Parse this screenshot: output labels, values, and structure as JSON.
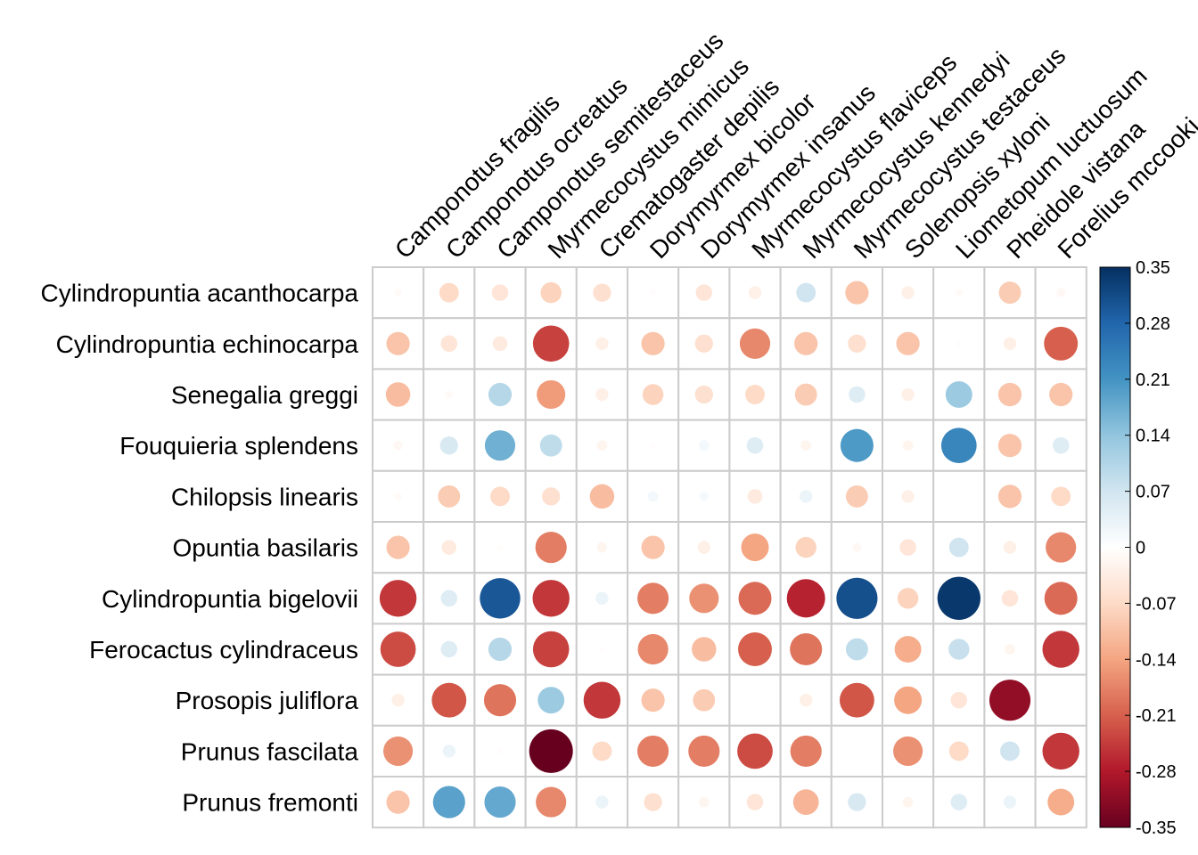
{
  "chart_data": {
    "type": "heatmap",
    "subtype": "corrplot-circle",
    "rows": [
      "Cylindropuntia acanthocarpa",
      "Cylindropuntia echinocarpa",
      "Senegalia greggi",
      "Fouquieria splendens",
      "Chilopsis linearis",
      "Opuntia basilaris",
      "Cylindropuntia bigelovii",
      "Ferocactus cylindraceus",
      "Prosopis juliflora",
      "Prunus fascilata",
      "Prunus fremonti"
    ],
    "columns": [
      "Camponotus fragilis",
      "Camponotus ocreatus",
      "Camponotus semitestaceus",
      "Myrmecocystus mimicus",
      "Crematogaster depilis",
      "Dorymyrmex bicolor",
      "Dorymyrmex insanus",
      "Myrmecocystus flaviceps",
      "Myrmecocystus kennedyi",
      "Myrmecocystus testaceus",
      "Solenopsis xyloni",
      "Liometopum luctuosum",
      "Pheidole vistana",
      "Forelius mccooki"
    ],
    "values": [
      [
        -0.01,
        -0.07,
        -0.05,
        -0.08,
        -0.06,
        -0.005,
        -0.05,
        -0.03,
        0.07,
        -0.1,
        -0.03,
        -0.01,
        -0.09,
        -0.015
      ],
      [
        -0.1,
        -0.05,
        -0.04,
        -0.24,
        -0.03,
        -0.1,
        -0.06,
        -0.17,
        -0.1,
        -0.06,
        -0.1,
        -0.005,
        -0.03,
        -0.21
      ],
      [
        -0.11,
        -0.01,
        0.1,
        -0.15,
        -0.03,
        -0.08,
        -0.06,
        -0.07,
        -0.09,
        0.05,
        -0.03,
        0.13,
        -0.1,
        -0.1
      ],
      [
        -0.015,
        0.06,
        0.17,
        0.09,
        -0.02,
        -0.005,
        0.02,
        0.05,
        -0.02,
        0.2,
        -0.02,
        0.23,
        -0.1,
        0.05
      ],
      [
        -0.01,
        -0.09,
        -0.07,
        -0.06,
        -0.11,
        0.02,
        0.015,
        -0.04,
        0.03,
        -0.09,
        -0.03,
        0.0,
        -0.1,
        -0.07
      ],
      [
        -0.1,
        -0.04,
        -0.005,
        -0.18,
        -0.02,
        -0.1,
        -0.03,
        -0.14,
        -0.08,
        -0.015,
        -0.05,
        0.07,
        -0.03,
        -0.17
      ],
      [
        -0.25,
        0.05,
        0.3,
        -0.25,
        0.03,
        -0.18,
        -0.16,
        -0.2,
        -0.27,
        0.31,
        -0.08,
        0.34,
        -0.05,
        -0.2
      ],
      [
        -0.23,
        0.05,
        0.1,
        -0.24,
        -0.005,
        -0.17,
        -0.11,
        -0.21,
        -0.19,
        0.09,
        -0.13,
        0.08,
        -0.02,
        -0.25
      ],
      [
        -0.03,
        -0.22,
        -0.19,
        0.13,
        -0.25,
        -0.1,
        -0.09,
        -0.002,
        -0.03,
        -0.22,
        -0.14,
        -0.05,
        -0.31,
        0.0
      ],
      [
        -0.16,
        0.03,
        -0.005,
        -0.35,
        -0.07,
        -0.18,
        -0.18,
        -0.23,
        -0.18,
        -0.003,
        -0.16,
        -0.07,
        0.07,
        -0.25
      ],
      [
        -0.1,
        0.19,
        0.18,
        -0.17,
        0.03,
        -0.06,
        -0.02,
        -0.05,
        -0.12,
        0.06,
        -0.02,
        0.05,
        0.03,
        -0.13
      ]
    ],
    "color_scale": {
      "min": -0.35,
      "max": 0.35,
      "ticks": [
        0.35,
        0.28,
        0.21,
        0.14,
        0.07,
        0,
        -0.07,
        -0.14,
        -0.21,
        -0.28,
        -0.35
      ],
      "tick_labels": [
        "0.35",
        "0.28",
        "0.21",
        "0.14",
        "0.07",
        "0",
        "-0.07",
        "-0.14",
        "-0.21",
        "-0.28",
        "-0.35"
      ],
      "colors": [
        "#67001F",
        "#B2182B",
        "#D6604D",
        "#F4A582",
        "#FDDBC7",
        "#FFFFFF",
        "#D1E5F0",
        "#92C5DE",
        "#4393C3",
        "#2166AC",
        "#053061"
      ]
    },
    "grid_color": "#cccccc",
    "legend_position": "right",
    "title": "",
    "xlabel": "",
    "ylabel": ""
  }
}
